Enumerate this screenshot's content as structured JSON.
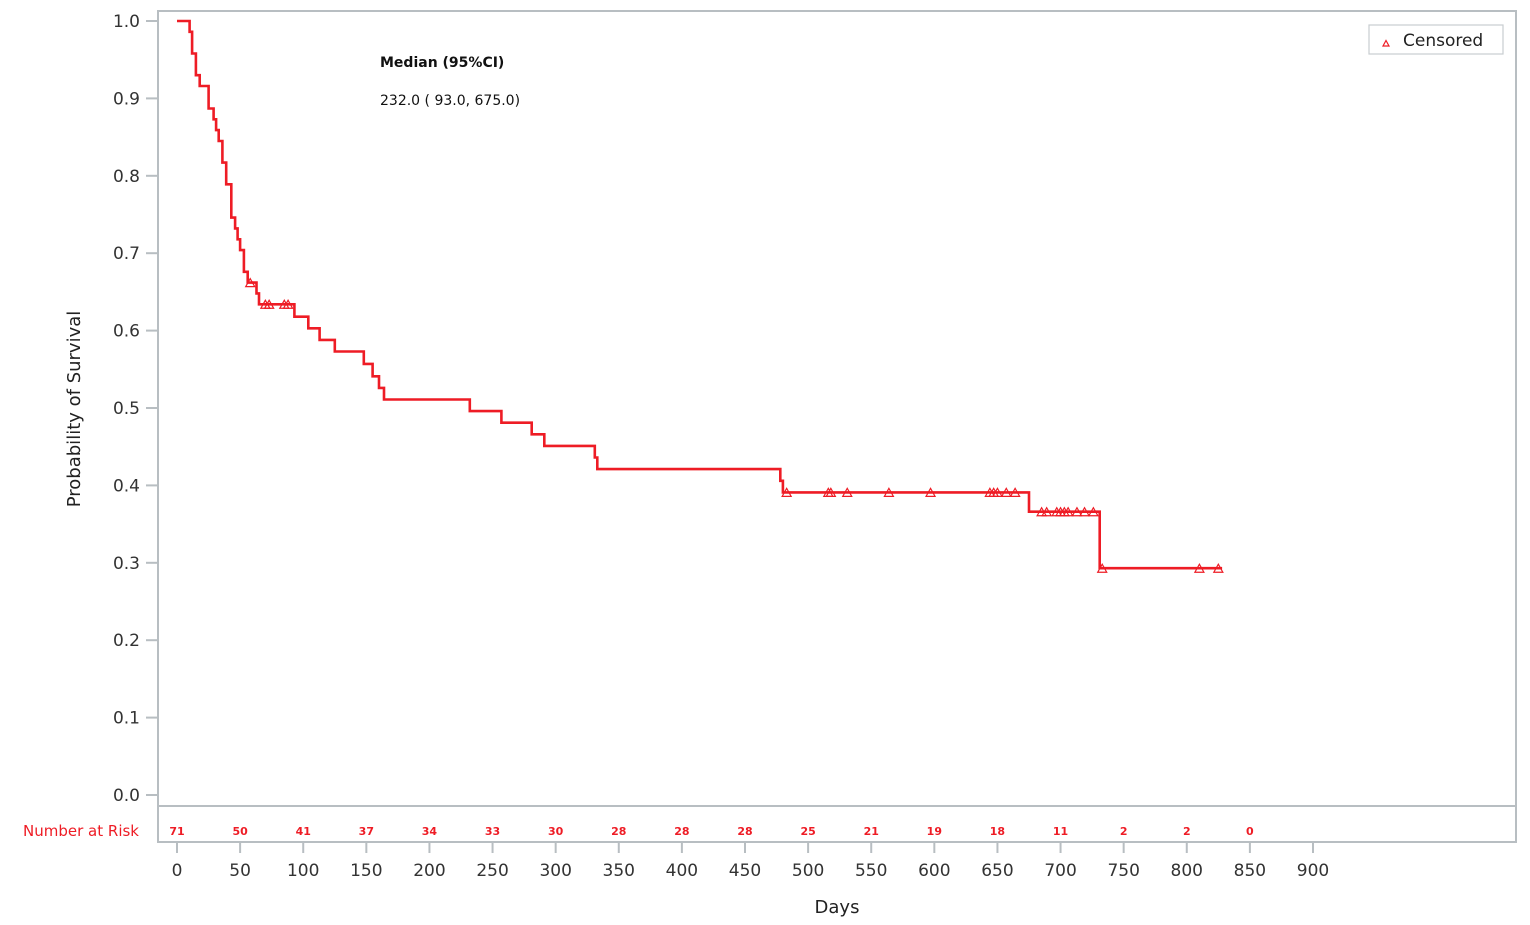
{
  "chart_data": {
    "type": "line",
    "subtype": "kaplan-meier step",
    "title": "",
    "xlabel": "Days",
    "ylabel": "Probability of Survival",
    "xlim": [
      0,
      900
    ],
    "ylim": [
      0.0,
      1.0
    ],
    "x_ticks": [
      0,
      50,
      100,
      150,
      200,
      250,
      300,
      350,
      400,
      450,
      500,
      550,
      600,
      650,
      700,
      750,
      800,
      850,
      900
    ],
    "y_ticks": [
      0.0,
      0.1,
      0.2,
      0.3,
      0.4,
      0.5,
      0.6,
      0.7,
      0.8,
      0.9,
      1.0
    ],
    "y_tick_labels": [
      "0.0",
      "0.1",
      "0.2",
      "0.3",
      "0.4",
      "0.5",
      "0.6",
      "0.7",
      "0.8",
      "0.9",
      "1.0"
    ],
    "grid": false,
    "series": [
      {
        "name": "Survival",
        "color": "#ee1c25",
        "steps": [
          {
            "x": 0,
            "y": 1.0
          },
          {
            "x": 10,
            "y": 0.986
          },
          {
            "x": 12,
            "y": 0.958
          },
          {
            "x": 15,
            "y": 0.93
          },
          {
            "x": 18,
            "y": 0.916
          },
          {
            "x": 25,
            "y": 0.887
          },
          {
            "x": 29,
            "y": 0.873
          },
          {
            "x": 31,
            "y": 0.859
          },
          {
            "x": 33,
            "y": 0.845
          },
          {
            "x": 36,
            "y": 0.817
          },
          {
            "x": 39,
            "y": 0.789
          },
          {
            "x": 43,
            "y": 0.746
          },
          {
            "x": 46,
            "y": 0.732
          },
          {
            "x": 48,
            "y": 0.718
          },
          {
            "x": 50,
            "y": 0.704
          },
          {
            "x": 53,
            "y": 0.676
          },
          {
            "x": 56,
            "y": 0.662
          },
          {
            "x": 63,
            "y": 0.648
          },
          {
            "x": 65,
            "y": 0.634
          },
          {
            "x": 93,
            "y": 0.618
          },
          {
            "x": 104,
            "y": 0.603
          },
          {
            "x": 113,
            "y": 0.588
          },
          {
            "x": 125,
            "y": 0.573
          },
          {
            "x": 148,
            "y": 0.557
          },
          {
            "x": 155,
            "y": 0.541
          },
          {
            "x": 160,
            "y": 0.526
          },
          {
            "x": 164,
            "y": 0.511
          },
          {
            "x": 232,
            "y": 0.496
          },
          {
            "x": 257,
            "y": 0.481
          },
          {
            "x": 281,
            "y": 0.466
          },
          {
            "x": 291,
            "y": 0.451
          },
          {
            "x": 331,
            "y": 0.436
          },
          {
            "x": 333,
            "y": 0.421
          },
          {
            "x": 478,
            "y": 0.406
          },
          {
            "x": 480,
            "y": 0.391
          },
          {
            "x": 675,
            "y": 0.366
          },
          {
            "x": 731,
            "y": 0.293
          },
          {
            "x": 828,
            "y": 0.293
          }
        ],
        "censored": [
          {
            "x": 58,
            "y": 0.662
          },
          {
            "x": 70,
            "y": 0.634
          },
          {
            "x": 73,
            "y": 0.634
          },
          {
            "x": 85,
            "y": 0.634
          },
          {
            "x": 88,
            "y": 0.634
          },
          {
            "x": 483,
            "y": 0.391
          },
          {
            "x": 516,
            "y": 0.391
          },
          {
            "x": 518,
            "y": 0.391
          },
          {
            "x": 531,
            "y": 0.391
          },
          {
            "x": 564,
            "y": 0.391
          },
          {
            "x": 597,
            "y": 0.391
          },
          {
            "x": 644,
            "y": 0.391
          },
          {
            "x": 647,
            "y": 0.391
          },
          {
            "x": 650,
            "y": 0.391
          },
          {
            "x": 657,
            "y": 0.391
          },
          {
            "x": 664,
            "y": 0.391
          },
          {
            "x": 685,
            "y": 0.366
          },
          {
            "x": 689,
            "y": 0.366
          },
          {
            "x": 697,
            "y": 0.366
          },
          {
            "x": 700,
            "y": 0.366
          },
          {
            "x": 703,
            "y": 0.366
          },
          {
            "x": 706,
            "y": 0.366
          },
          {
            "x": 713,
            "y": 0.366
          },
          {
            "x": 719,
            "y": 0.366
          },
          {
            "x": 726,
            "y": 0.366
          },
          {
            "x": 733,
            "y": 0.293
          },
          {
            "x": 810,
            "y": 0.293
          },
          {
            "x": 825,
            "y": 0.293
          }
        ]
      }
    ],
    "legend": {
      "position": "top-right",
      "entries": [
        {
          "label": "Censored",
          "symbol": "triangle-open",
          "color": "#ee1c25"
        }
      ]
    },
    "annotations": {
      "median_title": "Median (95%CI)",
      "median_value": "232.0 ( 93.0, 675.0)"
    },
    "risk_table": {
      "title": "Number at Risk",
      "days": [
        0,
        50,
        100,
        150,
        200,
        250,
        300,
        350,
        400,
        450,
        500,
        550,
        600,
        650,
        700,
        750,
        800,
        850
      ],
      "counts": [
        71,
        50,
        41,
        37,
        34,
        33,
        30,
        28,
        28,
        28,
        25,
        21,
        19,
        18,
        11,
        2,
        2,
        0
      ]
    }
  },
  "labels": {
    "xlabel": "Days",
    "ylabel": "Probability of Survival",
    "legend_censored": "Censored",
    "median_title": "Median (95%CI)",
    "median_value": "232.0 ( 93.0, 675.0)",
    "risk_title": "Number at Risk"
  },
  "colors": {
    "curve": "#ee1c25",
    "frame": "#b8bec2",
    "text": "#333333"
  }
}
